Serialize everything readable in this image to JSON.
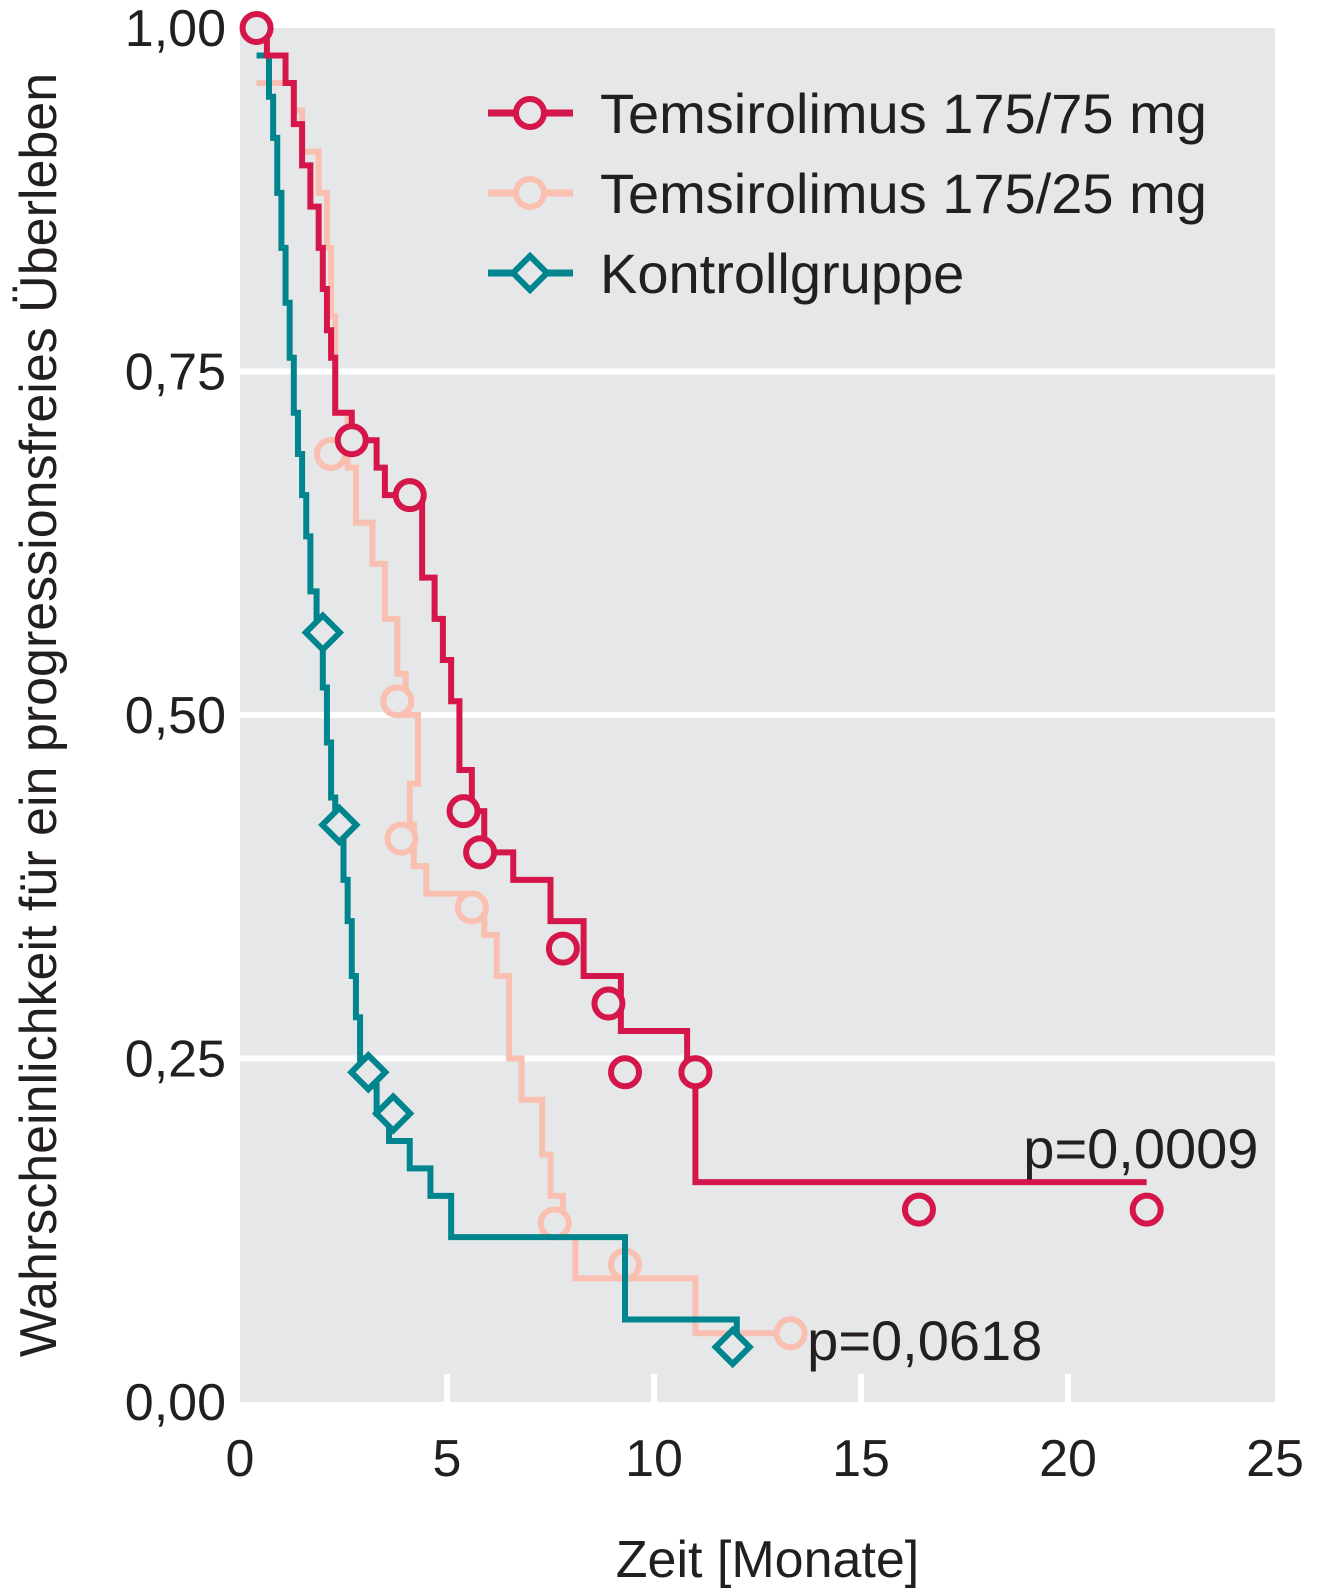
{
  "chart_data": {
    "type": "line",
    "subtype": "kaplan-meier step curves with censor markers",
    "xlabel": "Zeit [Monate]",
    "ylabel": "Wahrscheinlichkeit für ein progressionsfreies Überleben",
    "xlim": [
      0,
      25
    ],
    "ylim": [
      0,
      1
    ],
    "x_ticks": [
      {
        "value": 0,
        "label": "0"
      },
      {
        "value": 5,
        "label": "5"
      },
      {
        "value": 10,
        "label": "10"
      },
      {
        "value": 15,
        "label": "15"
      },
      {
        "value": 20,
        "label": "20"
      },
      {
        "value": 25,
        "label": "25"
      }
    ],
    "y_ticks": [
      {
        "value": 0,
        "label": "0,00"
      },
      {
        "value": 0.25,
        "label": "0,25"
      },
      {
        "value": 0.5,
        "label": "0,50"
      },
      {
        "value": 0.75,
        "label": "0,75"
      },
      {
        "value": 1,
        "label": "1,00"
      }
    ],
    "grid": true,
    "grid_color": "#ffffff",
    "background_color": "#e6e7e8",
    "legend_position": "top-right",
    "series": [
      {
        "name": "Temsirolimus 175/75 mg",
        "color": "#d4164a",
        "marker": "circle",
        "steps": [
          [
            0.4,
            1.0
          ],
          [
            0.65,
            0.98
          ],
          [
            1.1,
            0.96
          ],
          [
            1.3,
            0.93
          ],
          [
            1.5,
            0.9
          ],
          [
            1.7,
            0.87
          ],
          [
            1.9,
            0.84
          ],
          [
            2.0,
            0.81
          ],
          [
            2.1,
            0.78
          ],
          [
            2.2,
            0.76
          ],
          [
            2.3,
            0.72
          ],
          [
            2.7,
            0.7
          ],
          [
            3.3,
            0.68
          ],
          [
            3.5,
            0.66
          ],
          [
            4.1,
            0.66
          ],
          [
            4.4,
            0.6
          ],
          [
            4.7,
            0.57
          ],
          [
            4.9,
            0.54
          ],
          [
            5.1,
            0.51
          ],
          [
            5.3,
            0.46
          ],
          [
            5.6,
            0.43
          ],
          [
            5.9,
            0.4
          ],
          [
            6.6,
            0.38
          ],
          [
            7.5,
            0.35
          ],
          [
            8.3,
            0.31
          ],
          [
            9.2,
            0.27
          ],
          [
            10.8,
            0.24
          ],
          [
            11.0,
            0.16
          ],
          [
            21.9,
            0.16
          ]
        ],
        "censored": [
          [
            0.4,
            1.0
          ],
          [
            2.7,
            0.7
          ],
          [
            4.1,
            0.66
          ],
          [
            5.4,
            0.43
          ],
          [
            5.8,
            0.4
          ],
          [
            7.8,
            0.33
          ],
          [
            8.9,
            0.29
          ],
          [
            9.3,
            0.24
          ],
          [
            11.0,
            0.24
          ],
          [
            16.4,
            0.14
          ],
          [
            21.9,
            0.14
          ]
        ]
      },
      {
        "name": "Temsirolimus 175/25 mg",
        "color": "#f9bfb0",
        "marker": "circle",
        "steps": [
          [
            0.4,
            0.96
          ],
          [
            1.3,
            0.94
          ],
          [
            1.5,
            0.91
          ],
          [
            1.9,
            0.88
          ],
          [
            2.1,
            0.84
          ],
          [
            2.2,
            0.79
          ],
          [
            2.3,
            0.72
          ],
          [
            2.6,
            0.68
          ],
          [
            2.8,
            0.64
          ],
          [
            3.2,
            0.61
          ],
          [
            3.5,
            0.57
          ],
          [
            3.8,
            0.53
          ],
          [
            4.0,
            0.5
          ],
          [
            4.3,
            0.45
          ],
          [
            4.1,
            0.42
          ],
          [
            4.2,
            0.39
          ],
          [
            4.5,
            0.37
          ],
          [
            5.6,
            0.36
          ],
          [
            5.9,
            0.34
          ],
          [
            6.2,
            0.31
          ],
          [
            6.5,
            0.25
          ],
          [
            6.8,
            0.22
          ],
          [
            7.3,
            0.18
          ],
          [
            7.5,
            0.15
          ],
          [
            7.8,
            0.12
          ],
          [
            8.1,
            0.09
          ],
          [
            11.0,
            0.05
          ],
          [
            13.3,
            0.05
          ]
        ],
        "censored": [
          [
            2.2,
            0.69
          ],
          [
            3.8,
            0.51
          ],
          [
            3.9,
            0.41
          ],
          [
            5.6,
            0.36
          ],
          [
            7.6,
            0.13
          ],
          [
            9.3,
            0.1
          ],
          [
            13.3,
            0.05
          ]
        ]
      },
      {
        "name": "Kontrollgruppe",
        "color": "#00858e",
        "marker": "diamond",
        "steps": [
          [
            0.4,
            0.98
          ],
          [
            0.7,
            0.95
          ],
          [
            0.8,
            0.92
          ],
          [
            0.9,
            0.88
          ],
          [
            1.0,
            0.84
          ],
          [
            1.1,
            0.8
          ],
          [
            1.2,
            0.76
          ],
          [
            1.3,
            0.72
          ],
          [
            1.4,
            0.69
          ],
          [
            1.5,
            0.66
          ],
          [
            1.6,
            0.63
          ],
          [
            1.7,
            0.59
          ],
          [
            1.85,
            0.56
          ],
          [
            2.0,
            0.52
          ],
          [
            2.1,
            0.48
          ],
          [
            2.2,
            0.44
          ],
          [
            2.3,
            0.42
          ],
          [
            2.5,
            0.38
          ],
          [
            2.6,
            0.35
          ],
          [
            2.7,
            0.31
          ],
          [
            2.8,
            0.28
          ],
          [
            2.9,
            0.25
          ],
          [
            3.1,
            0.23
          ],
          [
            3.3,
            0.21
          ],
          [
            3.6,
            0.19
          ],
          [
            4.1,
            0.17
          ],
          [
            4.6,
            0.15
          ],
          [
            5.1,
            0.12
          ],
          [
            9.3,
            0.06
          ],
          [
            12.0,
            0.04
          ]
        ],
        "censored": [
          [
            2.0,
            0.56
          ],
          [
            2.4,
            0.42
          ],
          [
            3.1,
            0.24
          ],
          [
            3.7,
            0.21
          ],
          [
            11.9,
            0.04
          ]
        ]
      }
    ],
    "annotations": [
      {
        "text": "p=0,0009",
        "x": 24.6,
        "y": 0.185,
        "anchor": "end"
      },
      {
        "text": "p=0,0618",
        "x": 13.7,
        "y": 0.045,
        "anchor": "start"
      }
    ]
  }
}
